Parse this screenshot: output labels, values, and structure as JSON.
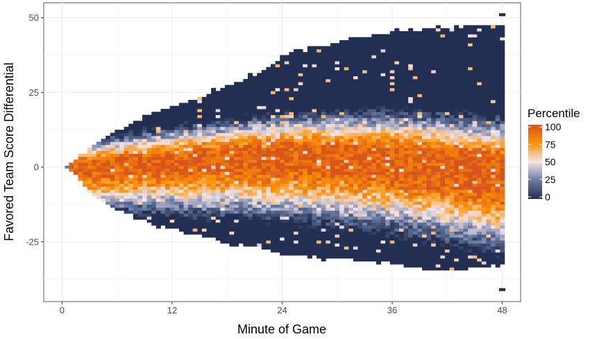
{
  "chart_data": {
    "type": "heatmap",
    "title": "",
    "xlabel": "Minute of Game",
    "ylabel": "Favored Team Score Differential",
    "xlim": [
      -2,
      50
    ],
    "ylim": [
      -45,
      55
    ],
    "x_ticks": [
      {
        "value": 0,
        "label": "0"
      },
      {
        "value": 12,
        "label": "12"
      },
      {
        "value": 24,
        "label": "24"
      },
      {
        "value": 36,
        "label": "36"
      },
      {
        "value": 48,
        "label": "48"
      }
    ],
    "y_ticks": [
      {
        "value": 50,
        "label": "50"
      },
      {
        "value": 25,
        "label": "25"
      },
      {
        "value": 0,
        "label": "0"
      },
      {
        "value": -25,
        "label": "-25"
      }
    ],
    "grid": true,
    "legend": {
      "title": "Percentile",
      "position": "right",
      "ticks": [
        {
          "value": 100,
          "label": "100"
        },
        {
          "value": 75,
          "label": "75"
        },
        {
          "value": 50,
          "label": "50"
        },
        {
          "value": 25,
          "label": "25"
        },
        {
          "value": 0,
          "label": "0"
        }
      ],
      "colors": [
        "#232f52",
        "#6a7aa3",
        "#f3e4e6",
        "#fb9208",
        "#d8541a"
      ]
    },
    "cells": {
      "x_step": 0.5,
      "y_step": 1,
      "upper_boundary": [
        [
          1,
          1
        ],
        [
          3,
          6
        ],
        [
          6,
          12
        ],
        [
          10,
          18
        ],
        [
          14,
          22
        ],
        [
          18,
          27
        ],
        [
          22,
          32
        ],
        [
          24,
          37
        ],
        [
          28,
          40
        ],
        [
          32,
          43
        ],
        [
          36,
          45
        ],
        [
          40,
          46
        ],
        [
          44,
          47
        ],
        [
          48,
          47
        ]
      ],
      "lower_boundary": [
        [
          1,
          -1
        ],
        [
          3,
          -8
        ],
        [
          6,
          -14
        ],
        [
          10,
          -19
        ],
        [
          14,
          -22
        ],
        [
          18,
          -25
        ],
        [
          22,
          -27
        ],
        [
          24,
          -29
        ],
        [
          28,
          -30
        ],
        [
          32,
          -31
        ],
        [
          36,
          -32
        ],
        [
          40,
          -34
        ],
        [
          44,
          -34
        ],
        [
          48,
          -32
        ]
      ],
      "median_curve": [
        [
          0,
          0
        ],
        [
          12,
          3
        ],
        [
          24,
          5
        ],
        [
          36,
          4
        ],
        [
          48,
          0
        ]
      ],
      "note_outliers": [
        [
          48,
          51
        ],
        [
          48,
          -41
        ]
      ]
    }
  }
}
